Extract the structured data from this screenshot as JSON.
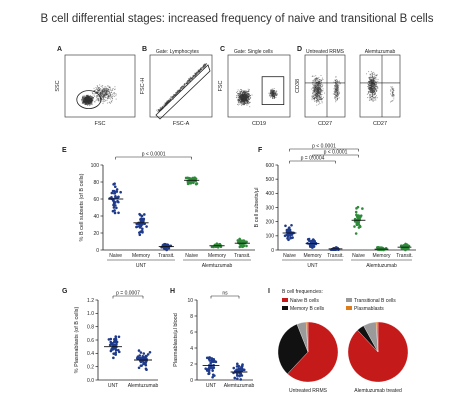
{
  "figure_title": "B cell differential stages: increased frequency of naive and transitional  B cells",
  "colors": {
    "navy": "#1f3a8a",
    "green": "#2e8b3a",
    "red": "#c41a1a",
    "black": "#111111",
    "gray": "#9a9a9a",
    "orange": "#e07b1a"
  },
  "flow_panels": [
    {
      "letter": "A",
      "gate": "",
      "xlabel": "FSC",
      "ylabel": "SSC"
    },
    {
      "letter": "B",
      "gate": "Gate: Lymphocytes",
      "xlabel": "FSC-A",
      "ylabel": "FSC-H"
    },
    {
      "letter": "C",
      "gate": "Gate: Single cells",
      "xlabel": "CD19",
      "ylabel": "FSC"
    },
    {
      "letter": "D",
      "gate": "",
      "xlabel": "CD27",
      "ylabel": "CD38",
      "sub_titles": [
        "Untreated RRMS",
        "Alemtuzumab"
      ],
      "xlabel2": "CD27"
    }
  ],
  "chart_data": [
    {
      "panel": "E",
      "type": "scatter",
      "ylabel": "% B cell subsets (of B cells)",
      "ylim": [
        0,
        100
      ],
      "yticks": [
        "0",
        "20",
        "40",
        "60",
        "80",
        "100"
      ],
      "categories": [
        "Naive",
        "Memory",
        "Transit.",
        "Naive",
        "Memory",
        "Transit."
      ],
      "groups": [
        "UNT",
        "Alemtuzumab"
      ],
      "series": [
        {
          "group": "UNT",
          "category": "Naive",
          "median": 60
        },
        {
          "group": "UNT",
          "category": "Memory",
          "median": 32
        },
        {
          "group": "UNT",
          "category": "Transit.",
          "median": 4
        },
        {
          "group": "Alemtuzumab",
          "category": "Naive",
          "median": 82
        },
        {
          "group": "Alemtuzumab",
          "category": "Memory",
          "median": 5
        },
        {
          "group": "Alemtuzumab",
          "category": "Transit.",
          "median": 8
        }
      ],
      "annotations": [
        "p < 0.0001"
      ]
    },
    {
      "panel": "F",
      "type": "scatter",
      "ylabel": "B cell subsets/µl",
      "ylim": [
        0,
        600
      ],
      "yticks": [
        "0",
        "100",
        "200",
        "300",
        "400",
        "500",
        "600"
      ],
      "categories": [
        "Naive",
        "Memory",
        "Transit.",
        "Naive",
        "Memory",
        "Transit."
      ],
      "groups": [
        "UNT",
        "Alemtuzumab"
      ],
      "series": [
        {
          "group": "UNT",
          "category": "Naive",
          "median": 120
        },
        {
          "group": "UNT",
          "category": "Memory",
          "median": 45
        },
        {
          "group": "UNT",
          "category": "Transit.",
          "median": 8
        },
        {
          "group": "Alemtuzumab",
          "category": "Naive",
          "median": 210
        },
        {
          "group": "Alemtuzumab",
          "category": "Memory",
          "median": 6
        },
        {
          "group": "Alemtuzumab",
          "category": "Transit.",
          "median": 20
        }
      ],
      "annotations": [
        "p < 0.0001",
        "p < 0.0001",
        "p = 0.0004"
      ]
    },
    {
      "panel": "G",
      "type": "scatter",
      "ylabel": "% Plasmablasts (of B cells)",
      "ylim": [
        0,
        1.2
      ],
      "yticks": [
        "0.0",
        "0.2",
        "0.4",
        "0.6",
        "0.8",
        "1.0",
        "1.2"
      ],
      "categories": [
        "UNT",
        "Alemtuzumab"
      ],
      "series": [
        {
          "category": "UNT",
          "median": 0.5
        },
        {
          "category": "Alemtuzumab",
          "median": 0.3
        }
      ],
      "annotations": [
        "p = 0.0007"
      ]
    },
    {
      "panel": "H",
      "type": "scatter",
      "ylabel": "Plasmablasts/µl blood",
      "ylim": [
        0,
        10
      ],
      "yticks": [
        "0",
        "2",
        "4",
        "6",
        "8",
        "10"
      ],
      "categories": [
        "UNT",
        "Alemtuzumab"
      ],
      "series": [
        {
          "category": "UNT",
          "median": 1.8
        },
        {
          "category": "Alemtuzumab",
          "median": 1.0
        }
      ],
      "annotations": [
        "ns"
      ]
    },
    {
      "panel": "I",
      "type": "pie",
      "title": "B cell frequencies:",
      "legend": [
        "Naive B cells",
        "Memory B cells",
        "Transitional B cells",
        "Plasmablasts"
      ],
      "pies": [
        {
          "label": "Untreated RRMS",
          "values": [
            62,
            32,
            5,
            1
          ]
        },
        {
          "label": "Alemtuzumab treated",
          "values": [
            88,
            4,
            7,
            1
          ]
        }
      ]
    }
  ]
}
